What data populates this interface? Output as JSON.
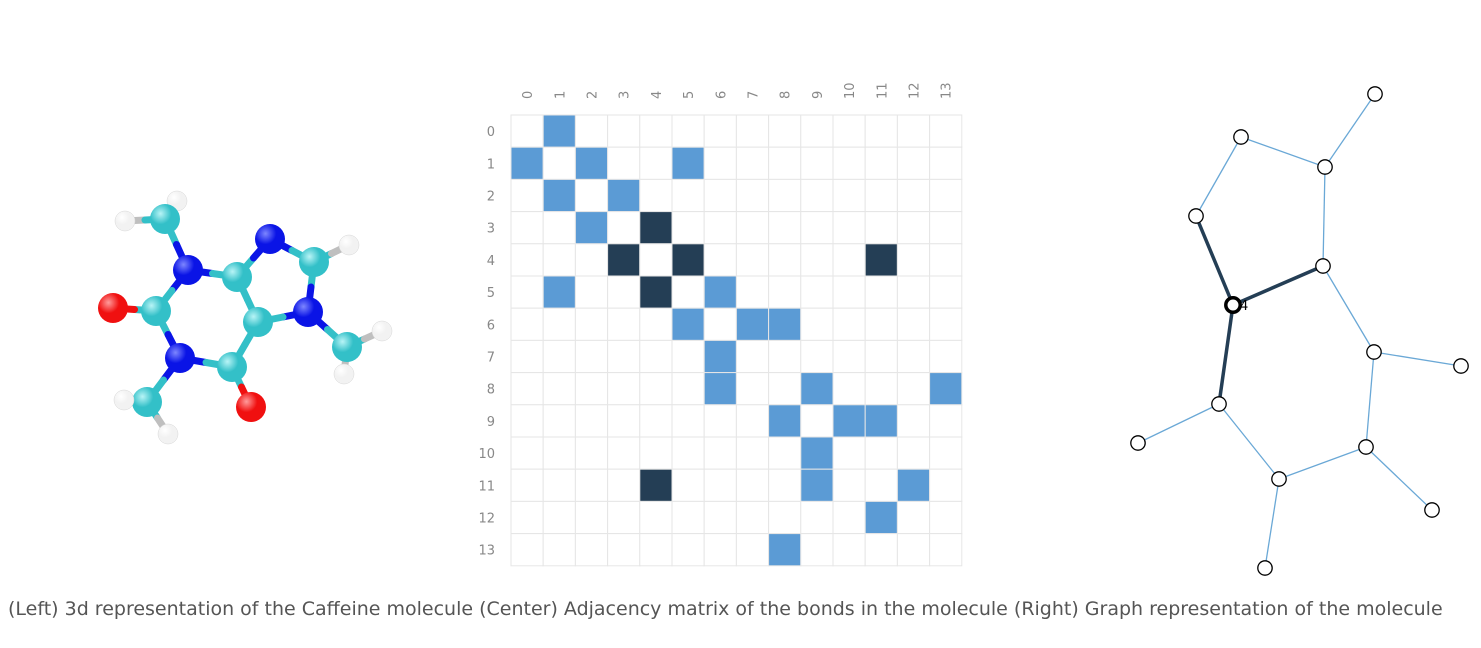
{
  "caption": "(Left) 3d representation of the Caffeine molecule (Center) Adjacency matrix of the bonds in the molecule (Right) Graph representation of the molecule",
  "colors": {
    "matrix_light": "#5b9bd5",
    "matrix_dark": "#243e55",
    "matrix_empty": "#ffffff",
    "graph_edge": "#6aa8d6",
    "graph_edge_highlight": "#243e55",
    "carbon": "#33c0c8",
    "nitrogen": "#0a14e6",
    "oxygen": "#f01010",
    "hydrogen": "#f2f2f2"
  },
  "molecule_3d": {
    "icon": "caffeine-ball-and-stick-model"
  },
  "adjacency_matrix": {
    "labels": [
      "0",
      "1",
      "2",
      "3",
      "4",
      "5",
      "6",
      "7",
      "8",
      "9",
      "10",
      "11",
      "12",
      "13"
    ],
    "light": [
      [
        0,
        1
      ],
      [
        1,
        0
      ],
      [
        1,
        2
      ],
      [
        1,
        5
      ],
      [
        2,
        1
      ],
      [
        2,
        3
      ],
      [
        3,
        2
      ],
      [
        5,
        1
      ],
      [
        5,
        6
      ],
      [
        6,
        5
      ],
      [
        6,
        7
      ],
      [
        6,
        8
      ],
      [
        7,
        6
      ],
      [
        8,
        6
      ],
      [
        8,
        9
      ],
      [
        8,
        13
      ],
      [
        9,
        8
      ],
      [
        9,
        10
      ],
      [
        9,
        11
      ],
      [
        10,
        9
      ],
      [
        11,
        9
      ],
      [
        11,
        12
      ],
      [
        12,
        11
      ],
      [
        13,
        8
      ]
    ],
    "dark": [
      [
        3,
        4
      ],
      [
        4,
        3
      ],
      [
        4,
        5
      ],
      [
        4,
        11
      ],
      [
        5,
        4
      ],
      [
        11,
        4
      ]
    ]
  },
  "graph": {
    "highlighted_node_label": "4"
  }
}
